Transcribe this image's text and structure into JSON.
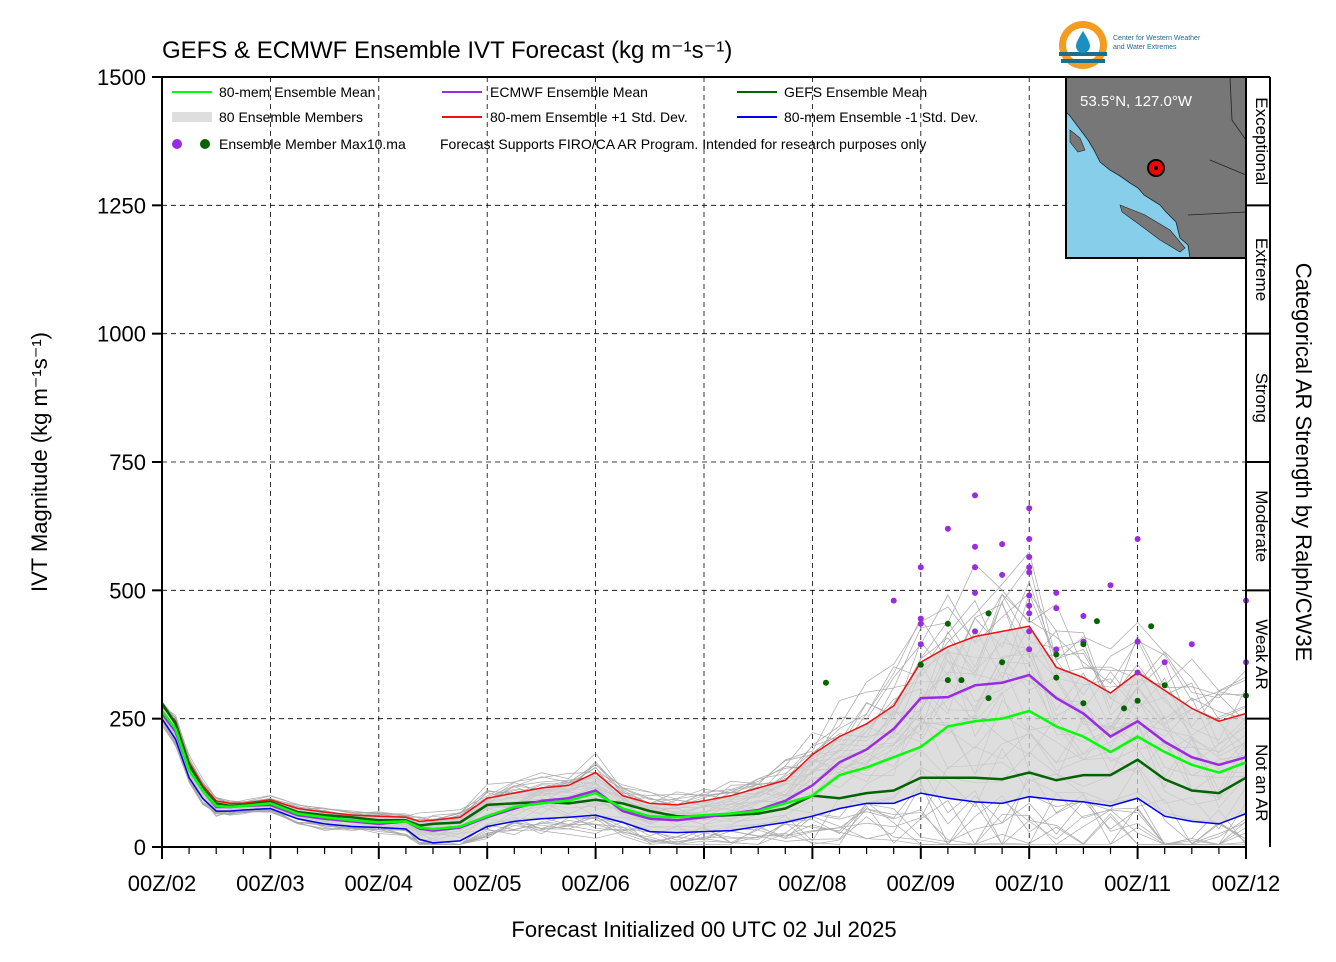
{
  "chart_data": {
    "type": "line",
    "title": "GEFS & ECMWF Ensemble IVT Forecast (kg m⁻¹s⁻¹)",
    "xlabel": "Forecast Initialized 00 UTC 02 Jul 2025",
    "ylabel": "IVT Magnitude (kg m⁻¹s⁻¹)",
    "right_label": "Categorical AR Strength by Ralph/CW3E",
    "ylim": [
      0,
      1500
    ],
    "xlim": [
      0,
      240
    ],
    "y_ticks": [
      0,
      250,
      500,
      750,
      1000,
      1250,
      1500
    ],
    "x_ticks": [
      {
        "hour": 0,
        "label": "00Z/02"
      },
      {
        "hour": 24,
        "label": "00Z/03"
      },
      {
        "hour": 48,
        "label": "00Z/04"
      },
      {
        "hour": 72,
        "label": "00Z/05"
      },
      {
        "hour": 96,
        "label": "00Z/06"
      },
      {
        "hour": 120,
        "label": "00Z/07"
      },
      {
        "hour": 144,
        "label": "00Z/08"
      },
      {
        "hour": 168,
        "label": "00Z/09"
      },
      {
        "hour": 192,
        "label": "00Z/10"
      },
      {
        "hour": 216,
        "label": "00Z/11"
      },
      {
        "hour": 240,
        "label": "00Z/12"
      }
    ],
    "grid": true,
    "legend_placement": "top-left",
    "categories_ar": [
      {
        "label": "Not an AR",
        "from": 0,
        "to": 250
      },
      {
        "label": "Weak AR",
        "from": 250,
        "to": 500
      },
      {
        "label": "Moderate",
        "from": 500,
        "to": 750
      },
      {
        "label": "Strong",
        "from": 750,
        "to": 1000
      },
      {
        "label": "Extreme",
        "from": 1000,
        "to": 1250
      },
      {
        "label": "Exceptional",
        "from": 1250,
        "to": 1500
      }
    ],
    "series": [
      {
        "key": "mean80",
        "name": "80-mem Ensemble Mean",
        "color": "#00ff00",
        "x": [
          0,
          3,
          6,
          9,
          12,
          15,
          18,
          24,
          30,
          36,
          42,
          48,
          54,
          57,
          60,
          66,
          72,
          78,
          84,
          90,
          96,
          102,
          108,
          114,
          120,
          126,
          132,
          138,
          144,
          150,
          156,
          162,
          168,
          174,
          180,
          186,
          192,
          198,
          204,
          210,
          216,
          222,
          228,
          234,
          240
        ],
        "y": [
          265,
          230,
          150,
          110,
          80,
          78,
          80,
          85,
          65,
          58,
          52,
          48,
          50,
          38,
          35,
          40,
          60,
          78,
          85,
          90,
          105,
          75,
          60,
          58,
          62,
          65,
          70,
          85,
          100,
          140,
          155,
          175,
          195,
          235,
          245,
          250,
          265,
          235,
          215,
          185,
          215,
          185,
          160,
          145,
          165
        ]
      },
      {
        "key": "ecmwf",
        "name": "ECMWF Ensemble Mean",
        "color": "#9a2be2",
        "x": [
          0,
          3,
          6,
          9,
          12,
          15,
          18,
          24,
          30,
          36,
          42,
          48,
          54,
          57,
          60,
          66,
          72,
          78,
          84,
          90,
          96,
          102,
          108,
          114,
          120,
          126,
          132,
          138,
          144,
          150,
          156,
          162,
          168,
          174,
          180,
          186,
          192,
          198,
          204,
          210,
          216,
          222,
          228,
          234,
          240
        ],
        "y": [
          260,
          225,
          150,
          110,
          78,
          78,
          80,
          82,
          62,
          55,
          50,
          45,
          50,
          36,
          32,
          38,
          58,
          75,
          90,
          95,
          110,
          70,
          55,
          52,
          58,
          65,
          72,
          90,
          120,
          165,
          190,
          230,
          290,
          292,
          315,
          320,
          335,
          290,
          260,
          215,
          245,
          205,
          175,
          160,
          175
        ]
      },
      {
        "key": "gefs",
        "name": "GEFS Ensemble Mean",
        "color": "#006400",
        "x": [
          0,
          3,
          6,
          9,
          12,
          15,
          18,
          24,
          30,
          36,
          42,
          48,
          54,
          57,
          60,
          66,
          72,
          78,
          84,
          90,
          96,
          102,
          108,
          114,
          120,
          126,
          132,
          138,
          144,
          150,
          156,
          162,
          168,
          174,
          180,
          186,
          192,
          198,
          204,
          210,
          216,
          222,
          228,
          234,
          240
        ],
        "y": [
          280,
          240,
          160,
          115,
          85,
          80,
          82,
          88,
          68,
          62,
          58,
          52,
          52,
          42,
          45,
          48,
          82,
          85,
          88,
          85,
          92,
          85,
          70,
          60,
          60,
          62,
          65,
          75,
          100,
          95,
          105,
          110,
          135,
          135,
          135,
          132,
          145,
          130,
          140,
          140,
          170,
          132,
          110,
          105,
          135
        ]
      },
      {
        "key": "plus1",
        "name": "80-mem Ensemble +1 Std. Dev.",
        "color": "#ee1111",
        "x": [
          0,
          3,
          6,
          9,
          12,
          15,
          18,
          24,
          30,
          36,
          42,
          48,
          54,
          57,
          60,
          66,
          72,
          78,
          84,
          90,
          96,
          102,
          108,
          114,
          120,
          126,
          132,
          138,
          144,
          150,
          156,
          162,
          168,
          174,
          180,
          186,
          192,
          198,
          204,
          210,
          216,
          222,
          228,
          234,
          240
        ],
        "y": [
          275,
          245,
          165,
          120,
          90,
          85,
          85,
          92,
          75,
          68,
          62,
          60,
          58,
          50,
          52,
          58,
          95,
          105,
          115,
          120,
          145,
          100,
          85,
          82,
          90,
          100,
          115,
          130,
          180,
          215,
          240,
          275,
          360,
          390,
          410,
          420,
          430,
          350,
          330,
          300,
          340,
          305,
          270,
          245,
          260
        ]
      },
      {
        "key": "minus1",
        "name": "80-mem Ensemble -1 Std. Dev.",
        "color": "#0000ee",
        "x": [
          0,
          3,
          6,
          9,
          12,
          15,
          18,
          24,
          30,
          36,
          42,
          48,
          54,
          57,
          60,
          66,
          72,
          78,
          84,
          90,
          96,
          102,
          108,
          114,
          120,
          126,
          132,
          138,
          144,
          150,
          156,
          162,
          168,
          174,
          180,
          186,
          192,
          198,
          204,
          210,
          216,
          222,
          228,
          234,
          240
        ],
        "y": [
          250,
          210,
          135,
          95,
          70,
          70,
          72,
          75,
          55,
          45,
          40,
          38,
          35,
          15,
          8,
          12,
          40,
          50,
          55,
          58,
          62,
          48,
          30,
          28,
          30,
          32,
          40,
          48,
          60,
          75,
          85,
          85,
          105,
          95,
          88,
          85,
          98,
          92,
          88,
          80,
          95,
          60,
          50,
          45,
          65
        ]
      }
    ],
    "member_legend_label": "80 Ensemble Members",
    "max_points_label": "Ensemble Member Max10.ma",
    "max_points": {
      "ecmwf_color": "#9a2be2",
      "gefs_color": "#006400",
      "ecmwf": [
        [
          168,
          545
        ],
        [
          168,
          445
        ],
        [
          168,
          435
        ],
        [
          168,
          395
        ],
        [
          162,
          480
        ],
        [
          174,
          620
        ],
        [
          180,
          685
        ],
        [
          180,
          585
        ],
        [
          180,
          545
        ],
        [
          180,
          495
        ],
        [
          180,
          420
        ],
        [
          186,
          590
        ],
        [
          186,
          530
        ],
        [
          192,
          660
        ],
        [
          192,
          600
        ],
        [
          192,
          565
        ],
        [
          192,
          545
        ],
        [
          192,
          535
        ],
        [
          192,
          490
        ],
        [
          192,
          470
        ],
        [
          192,
          455
        ],
        [
          192,
          420
        ],
        [
          192,
          385
        ],
        [
          198,
          495
        ],
        [
          198,
          465
        ],
        [
          198,
          385
        ],
        [
          204,
          450
        ],
        [
          204,
          400
        ],
        [
          210,
          510
        ],
        [
          216,
          600
        ],
        [
          216,
          400
        ],
        [
          216,
          340
        ],
        [
          222,
          360
        ],
        [
          228,
          395
        ],
        [
          240,
          480
        ],
        [
          240,
          360
        ]
      ],
      "gefs": [
        [
          147,
          320
        ],
        [
          168,
          355
        ],
        [
          174,
          435
        ],
        [
          174,
          325
        ],
        [
          177,
          325
        ],
        [
          183,
          455
        ],
        [
          183,
          290
        ],
        [
          186,
          360
        ],
        [
          198,
          330
        ],
        [
          198,
          375
        ],
        [
          204,
          395
        ],
        [
          204,
          280
        ],
        [
          207,
          440
        ],
        [
          213,
          270
        ],
        [
          216,
          285
        ],
        [
          219,
          430
        ],
        [
          222,
          315
        ],
        [
          240,
          295
        ]
      ]
    },
    "notice": "Forecast Supports FIRO/CA AR Program. Intended for research purposes only",
    "inset_map": {
      "location": "53.5°N, 127.0°W",
      "land_color": "#777777",
      "water_color": "#87ceeb",
      "marker_color": "#ff0000"
    },
    "logo": {
      "line1": "Center for Western Weather",
      "line2": "and Water Extremes"
    }
  }
}
